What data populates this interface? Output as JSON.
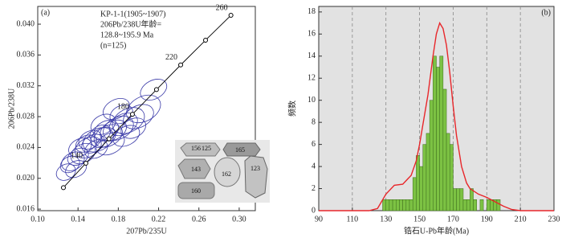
{
  "chart_data": [
    {
      "type": "scatter",
      "panel_label": "(a)",
      "xlabel": "207Pb/235U",
      "ylabel": "206Pb/238U",
      "annotations": [
        "KP-1-1(1905~1907)",
        "206Pb/238U年龄=",
        "128.8~195.9 Ma",
        "(n=125)"
      ],
      "xlim": [
        0.1,
        0.316
      ],
      "ylim": [
        0.0158,
        0.0423
      ],
      "xticks": [
        {
          "value": 0.1,
          "label": "0.10"
        },
        {
          "value": 0.14,
          "label": "0.14"
        },
        {
          "value": 0.18,
          "label": "0.18"
        },
        {
          "value": 0.22,
          "label": "0.22"
        },
        {
          "value": 0.26,
          "label": "0.26"
        },
        {
          "value": 0.3,
          "label": "0.30"
        }
      ],
      "yticks": [
        {
          "value": 0.016,
          "label": "0.016"
        },
        {
          "value": 0.02,
          "label": "0.020"
        },
        {
          "value": 0.024,
          "label": "0.024"
        },
        {
          "value": 0.028,
          "label": "0.028"
        },
        {
          "value": 0.032,
          "label": "0.032"
        },
        {
          "value": 0.036,
          "label": "0.036"
        },
        {
          "value": 0.04,
          "label": "0.040"
        }
      ],
      "concordia": {
        "color": "#000000",
        "labels": [
          null,
          140,
          null,
          180,
          null,
          220,
          null,
          260
        ],
        "x": [
          0.1255,
          0.1478,
          0.1707,
          0.194,
          0.2179,
          0.2419,
          0.2666,
          0.2918
        ],
        "y": [
          0.01879,
          0.02196,
          0.02513,
          0.02831,
          0.03151,
          0.03471,
          0.03792,
          0.04115
        ]
      },
      "series": [
        {
          "color": "#3a3aa8",
          "x": [
            0.15,
            0.155,
            0.16,
            0.165,
            0.17,
            0.162,
            0.175,
            0.18,
            0.158,
            0.145,
            0.14,
            0.135,
            0.132,
            0.138,
            0.168,
            0.185,
            0.19,
            0.183,
            0.178,
            0.2,
            0.205,
            0.215,
            0.195,
            0.152,
            0.148,
            0.142,
            0.172,
            0.188,
            0.165,
            0.128
          ],
          "y": [
            0.024,
            0.0245,
            0.025,
            0.0253,
            0.0255,
            0.0258,
            0.0262,
            0.0265,
            0.0238,
            0.0232,
            0.0228,
            0.0222,
            0.0218,
            0.0212,
            0.0262,
            0.027,
            0.0275,
            0.0283,
            0.029,
            0.028,
            0.029,
            0.0315,
            0.0265,
            0.025,
            0.0245,
            0.024,
            0.0245,
            0.0255,
            0.027,
            0.0208
          ],
          "x_err": [
            0.014,
            0.012,
            0.016,
            0.013,
            0.015,
            0.011,
            0.014,
            0.016,
            0.012,
            0.013,
            0.011,
            0.012,
            0.01,
            0.011,
            0.013,
            0.015,
            0.017,
            0.012,
            0.014,
            0.016,
            0.018,
            0.014,
            0.013,
            0.012,
            0.011,
            0.012,
            0.015,
            0.014,
            0.013,
            0.01
          ],
          "y_err": [
            0.0012,
            0.0011,
            0.0014,
            0.0012,
            0.0013,
            0.001,
            0.0012,
            0.0014,
            0.0011,
            0.0012,
            0.001,
            0.0011,
            0.001,
            0.001,
            0.0012,
            0.0013,
            0.0015,
            0.0011,
            0.0012,
            0.0014,
            0.0016,
            0.0012,
            0.0012,
            0.0011,
            0.001,
            0.0011,
            0.0013,
            0.0012,
            0.0012,
            0.001
          ]
        }
      ],
      "inset_labels": [
        "156",
        "125",
        "165",
        "143",
        "162",
        "160",
        "123"
      ]
    },
    {
      "type": "histogram",
      "panel_label": "(b)",
      "xlabel": "锆石U-Pb年龄(Ma)",
      "ylabel": "频数",
      "xlim": [
        90,
        230
      ],
      "ylim": [
        0,
        18.5
      ],
      "xticks": [
        90,
        110,
        130,
        150,
        170,
        190,
        210,
        230
      ],
      "yticks": [
        0,
        2,
        4,
        6,
        8,
        10,
        12,
        14,
        16,
        18
      ],
      "grid": true,
      "bins": [
        128,
        130,
        132,
        134,
        136,
        138,
        140,
        142,
        144,
        146,
        148,
        150,
        152,
        154,
        156,
        158,
        160,
        162,
        164,
        166,
        168,
        170,
        172,
        174,
        176,
        178,
        180,
        182,
        184,
        186,
        188,
        190,
        192,
        194,
        196,
        198
      ],
      "values": [
        1,
        1,
        1,
        1,
        1,
        1,
        1,
        1,
        1,
        3,
        5,
        4,
        6,
        7,
        10,
        14,
        13,
        14,
        11,
        7,
        6,
        2,
        2,
        2,
        1,
        1,
        2,
        1,
        0,
        1,
        0,
        1,
        1,
        1,
        1
      ],
      "color": "#7cc243",
      "curve": {
        "color": "#e8262a",
        "x": [
          90,
          120,
          125,
          130,
          135,
          140,
          145,
          148,
          150,
          152,
          155,
          158,
          160,
          162,
          164,
          166,
          168,
          170,
          172,
          175,
          178,
          180,
          185,
          190,
          195,
          200,
          205,
          210,
          230
        ],
        "y": [
          0,
          0,
          0.2,
          1.5,
          2.3,
          2.4,
          3.2,
          4.5,
          6,
          7.8,
          10.5,
          14,
          16,
          17,
          16.5,
          15,
          12.5,
          9.5,
          6.8,
          4,
          2.5,
          2,
          1.5,
          1.2,
          0.8,
          0.4,
          0.1,
          0,
          0
        ]
      }
    }
  ]
}
